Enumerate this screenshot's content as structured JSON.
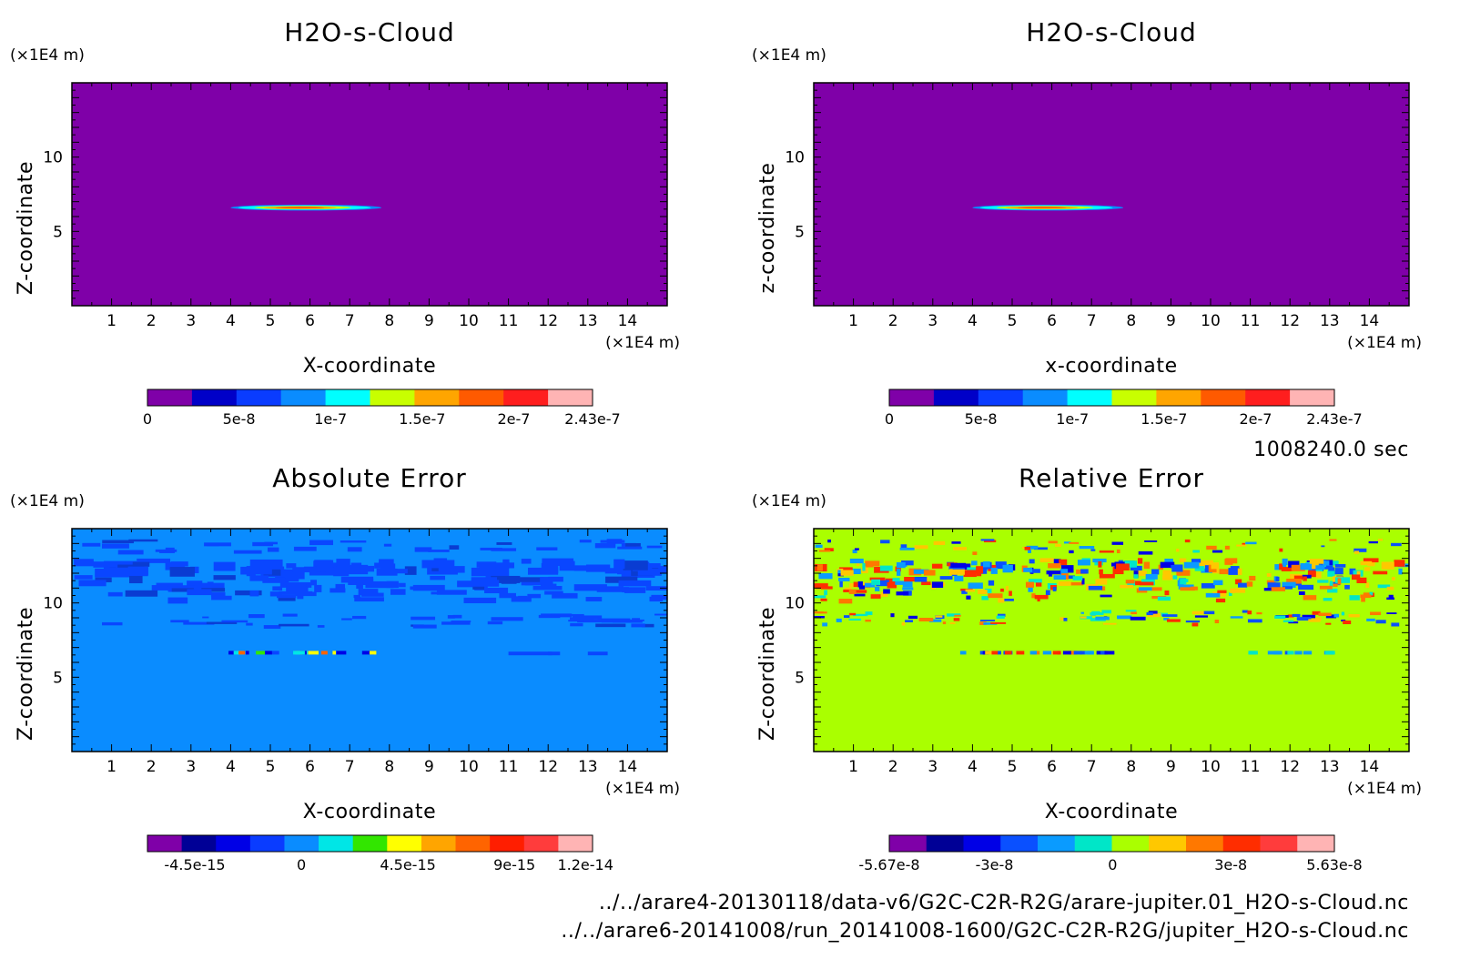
{
  "time_label": "1008240.0 sec",
  "files": [
    "../../arare4-20130118/data-v6/G2C-C2R-R2G/arare-jupiter.01_H2O-s-Cloud.nc",
    "../../arare6-20141008/run_20141008-1600/G2C-C2R-R2G/jupiter_H2O-s-Cloud.nc"
  ],
  "chart_data": [
    {
      "type": "heatmap",
      "title": "H2O-s-Cloud",
      "xlabel": "X-coordinate",
      "ylabel": "Z-coordinate",
      "x_unit": "(×1E4 m)",
      "y_unit": "(×1E4 m)",
      "xlim": [
        0,
        15
      ],
      "ylim": [
        0,
        15
      ],
      "x_ticks": [
        1,
        2,
        3,
        4,
        5,
        6,
        7,
        8,
        9,
        10,
        11,
        12,
        13,
        14
      ],
      "y_ticks": [
        5,
        10
      ],
      "background": "#7f00a8",
      "features": [
        {
          "x": [
            4,
            7.8
          ],
          "z": 6.6,
          "peak": 2.43e-07
        }
      ],
      "colorbar": {
        "colors": [
          "#7f00a8",
          "#0000c8",
          "#0a3cff",
          "#0a8cff",
          "#00ffff",
          "#c8ff00",
          "#ffa500",
          "#ff5a00",
          "#ff1e1e",
          "#ffb4b4"
        ],
        "tick_labels": [
          "0",
          "5e-8",
          "1e-7",
          "1.5e-7",
          "2e-7",
          "2.43e-7"
        ],
        "tick_values": [
          0,
          5e-08,
          1e-07,
          1.5e-07,
          2e-07,
          2.43e-07
        ],
        "range": [
          0,
          2.43e-07
        ]
      }
    },
    {
      "type": "heatmap",
      "title": "H2O-s-Cloud",
      "xlabel": "x-coordinate",
      "ylabel": "z-coordinate",
      "x_unit": "(×1E4 m)",
      "y_unit": "(×1E4 m)",
      "xlim": [
        0,
        15
      ],
      "ylim": [
        0,
        15
      ],
      "x_ticks": [
        1,
        2,
        3,
        4,
        5,
        6,
        7,
        8,
        9,
        10,
        11,
        12,
        13,
        14
      ],
      "y_ticks": [
        5,
        10
      ],
      "background": "#7f00a8",
      "features": [
        {
          "x": [
            4,
            7.8
          ],
          "z": 6.6,
          "peak": 2.43e-07
        }
      ],
      "colorbar": {
        "colors": [
          "#7f00a8",
          "#0000c8",
          "#0a3cff",
          "#0a8cff",
          "#00ffff",
          "#c8ff00",
          "#ffa500",
          "#ff5a00",
          "#ff1e1e",
          "#ffb4b4"
        ],
        "tick_labels": [
          "0",
          "5e-8",
          "1e-7",
          "1.5e-7",
          "2e-7",
          "2.43e-7"
        ],
        "tick_values": [
          0,
          5e-08,
          1e-07,
          1.5e-07,
          2e-07,
          2.43e-07
        ],
        "range": [
          0,
          2.43e-07
        ]
      }
    },
    {
      "type": "heatmap",
      "title": "Absolute Error",
      "xlabel": "X-coordinate",
      "ylabel": "Z-coordinate",
      "x_unit": "(×1E4 m)",
      "y_unit": "(×1E4 m)",
      "xlim": [
        0,
        15
      ],
      "ylim": [
        0,
        15
      ],
      "x_ticks": [
        1,
        2,
        3,
        4,
        5,
        6,
        7,
        8,
        9,
        10,
        11,
        12,
        13,
        14
      ],
      "y_ticks": [
        5,
        10
      ],
      "background": "#0a8cff",
      "colorbar": {
        "colors": [
          "#7f00a8",
          "#000096",
          "#0000e6",
          "#0a3cff",
          "#0a8cff",
          "#00e6e6",
          "#32e600",
          "#ffff00",
          "#ffa500",
          "#ff6400",
          "#ff1e00",
          "#ff3c3c",
          "#ffb4b4"
        ],
        "tick_labels": [
          "-4.5e-15",
          "0",
          "4.5e-15",
          "9e-15",
          "1.2e-14"
        ],
        "tick_values": [
          -4.5e-15,
          0,
          4.5e-15,
          9e-15,
          1.2e-14
        ],
        "range": [
          -6.5e-15,
          1.23e-14
        ]
      }
    },
    {
      "type": "heatmap",
      "title": "Relative Error",
      "xlabel": "X-coordinate",
      "ylabel": "Z-coordinate",
      "x_unit": "(×1E4 m)",
      "y_unit": "(×1E4 m)",
      "xlim": [
        0,
        15
      ],
      "ylim": [
        0,
        15
      ],
      "x_ticks": [
        1,
        2,
        3,
        4,
        5,
        6,
        7,
        8,
        9,
        10,
        11,
        12,
        13,
        14
      ],
      "y_ticks": [
        5,
        10
      ],
      "background": "#aaff00",
      "colorbar": {
        "colors": [
          "#7f00a8",
          "#000096",
          "#0000e6",
          "#0a50ff",
          "#0a9bff",
          "#00e6c8",
          "#aaff00",
          "#ffc800",
          "#ff7800",
          "#ff2d00",
          "#ff3c3c",
          "#ffb4b4"
        ],
        "tick_labels": [
          "-5.67e-8",
          "-3e-8",
          "0",
          "3e-8",
          "5.63e-8"
        ],
        "tick_values": [
          -5.67e-08,
          -3e-08,
          0,
          3e-08,
          5.63e-08
        ],
        "range": [
          -5.67e-08,
          5.63e-08
        ]
      }
    }
  ]
}
